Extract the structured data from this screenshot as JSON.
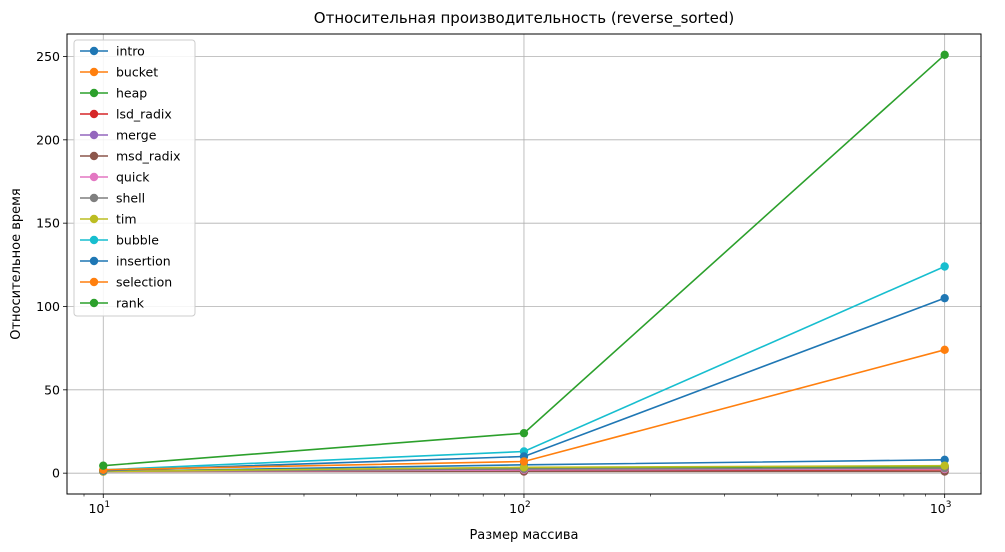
{
  "chart_data": {
    "type": "line",
    "title": "Относительная производительность (reverse_sorted)",
    "xlabel": "Размер массива",
    "ylabel": "Относительное время",
    "x_scale": "log",
    "x": [
      10,
      100,
      1000
    ],
    "x_ticks": [
      {
        "base": "10",
        "exp": "1",
        "value": 10
      },
      {
        "base": "10",
        "exp": "2",
        "value": 100
      },
      {
        "base": "10",
        "exp": "3",
        "value": 1000
      }
    ],
    "y_ticks": [
      0,
      50,
      100,
      150,
      200,
      250
    ],
    "xlim": [
      8.2,
      1220
    ],
    "ylim": [
      -12.5,
      263.5
    ],
    "grid": true,
    "legend_position": "top-left",
    "series": [
      {
        "name": "intro",
        "color": "#1f77b4",
        "values": [
          1.0,
          5.0,
          8.0
        ]
      },
      {
        "name": "bucket",
        "color": "#ff7f0e",
        "values": [
          1.5,
          2.5,
          3.5
        ]
      },
      {
        "name": "heap",
        "color": "#2ca02c",
        "values": [
          1.5,
          3.0,
          4.0
        ]
      },
      {
        "name": "lsd_radix",
        "color": "#d62728",
        "values": [
          1.0,
          1.5,
          2.0
        ]
      },
      {
        "name": "merge",
        "color": "#9467bd",
        "values": [
          1.5,
          2.0,
          3.0
        ]
      },
      {
        "name": "msd_radix",
        "color": "#8c564b",
        "values": [
          1.0,
          1.0,
          1.0
        ]
      },
      {
        "name": "quick",
        "color": "#e377c2",
        "values": [
          1.0,
          2.0,
          2.5
        ]
      },
      {
        "name": "shell",
        "color": "#7f7f7f",
        "values": [
          1.0,
          2.5,
          3.0
        ]
      },
      {
        "name": "tim",
        "color": "#bcbd22",
        "values": [
          1.0,
          3.5,
          4.5
        ]
      },
      {
        "name": "bubble",
        "color": "#17becf",
        "values": [
          2.0,
          13.0,
          124.0
        ]
      },
      {
        "name": "insertion",
        "color": "#1f77b4",
        "values": [
          1.5,
          10.0,
          105.0
        ]
      },
      {
        "name": "selection",
        "color": "#ff7f0e",
        "values": [
          2.0,
          7.0,
          74.0
        ]
      },
      {
        "name": "rank",
        "color": "#2ca02c",
        "values": [
          4.5,
          24.0,
          251.0
        ]
      }
    ]
  }
}
